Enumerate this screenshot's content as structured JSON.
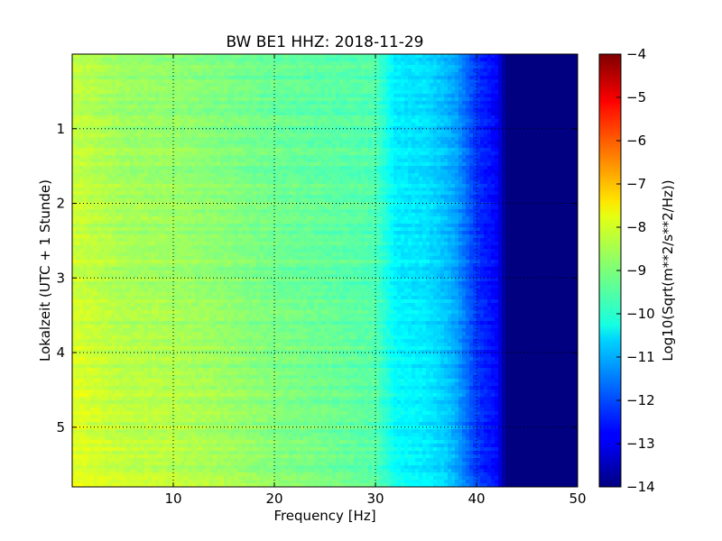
{
  "chart_data": {
    "type": "heatmap",
    "title": "BW BE1 HHZ: 2018-11-29",
    "xlabel": "Frequency [Hz]",
    "ylabel": "Lokalzeit (UTC + 1 Stunde)",
    "colorbar_label": "Log10(Sqrt(m**2/s**2/Hz))",
    "colormap": "jet",
    "xlim": [
      0,
      50
    ],
    "ylim": [
      0,
      5.8
    ],
    "y_inverted": true,
    "clim": [
      -14,
      -4
    ],
    "grid": true,
    "x_ticks": [
      "10",
      "20",
      "30",
      "40",
      "50"
    ],
    "x_tick_values": [
      10,
      20,
      30,
      40,
      50
    ],
    "y_ticks": [
      "1",
      "2",
      "3",
      "4",
      "5"
    ],
    "y_tick_values": [
      1,
      2,
      3,
      4,
      5
    ],
    "colorbar_ticks": [
      "−4",
      "−5",
      "−6",
      "−7",
      "−8",
      "−9",
      "−10",
      "−11",
      "−12",
      "−13",
      "−14"
    ],
    "colorbar_tick_values": [
      -4,
      -5,
      -6,
      -7,
      -8,
      -9,
      -10,
      -11,
      -12,
      -13,
      -14
    ],
    "spectral_profile": {
      "frequency_hz": [
        0,
        5,
        10,
        15,
        20,
        25,
        30,
        32,
        35,
        37,
        38,
        40,
        42,
        43,
        45,
        50
      ],
      "level_early": [
        -8.4,
        -8.8,
        -8.9,
        -9.1,
        -9.3,
        -9.4,
        -9.5,
        -10.5,
        -10.6,
        -11.0,
        -11.2,
        -12.3,
        -12.8,
        -14.0,
        -14.0,
        -14.0
      ],
      "level_late": [
        -8.0,
        -8.3,
        -8.4,
        -8.6,
        -8.9,
        -9.1,
        -9.4,
        -10.2,
        -10.4,
        -10.7,
        -11.1,
        -12.2,
        -12.7,
        -14.0,
        -14.0,
        -14.0
      ]
    }
  }
}
